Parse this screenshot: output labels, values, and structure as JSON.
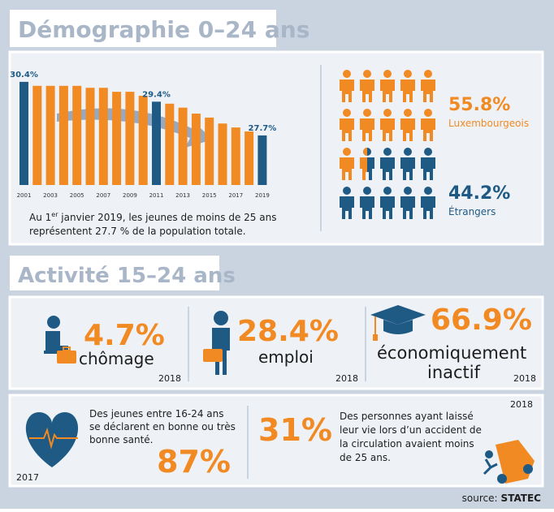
{
  "demographie": {
    "title": "Démographie 0–24 ans",
    "note_before": "Au 1",
    "note_sup": "er",
    "note_after": " janvier 2019, les jeunes de moins de 25 ans",
    "note_line2": "représentent 27.7 % de la population totale.",
    "lux_value": "55.8%",
    "lux_label": "Luxembourgeois",
    "etr_value": "44.2%",
    "etr_label": "Étrangers"
  },
  "chart_data": {
    "type": "bar",
    "categories": [
      "2001",
      null,
      "2003",
      null,
      "2005",
      null,
      "2007",
      null,
      "2009",
      null,
      "2011",
      null,
      "2013",
      null,
      "2015",
      null,
      "2017",
      null,
      "2019"
    ],
    "values": [
      30.4,
      30.2,
      30.2,
      30.2,
      30.2,
      30.1,
      30.1,
      29.9,
      29.9,
      29.7,
      29.4,
      29.3,
      29.1,
      28.8,
      28.6,
      28.3,
      28.1,
      27.9,
      27.7
    ],
    "value_labels": [
      "30.4%",
      null,
      null,
      null,
      null,
      null,
      null,
      null,
      null,
      null,
      "29.4%",
      null,
      null,
      null,
      null,
      null,
      null,
      null,
      "27.7%"
    ],
    "colors": [
      "#1f5a85",
      "#f28a24",
      "#f28a24",
      "#f28a24",
      "#f28a24",
      "#f28a24",
      "#f28a24",
      "#f28a24",
      "#f28a24",
      "#f28a24",
      "#1f5a85",
      "#f28a24",
      "#f28a24",
      "#f28a24",
      "#f28a24",
      "#f28a24",
      "#f28a24",
      "#f28a24",
      "#1f5a85"
    ],
    "ylim": [
      25.2,
      30.6
    ]
  },
  "activite": {
    "title": "Activité 15–24 ans",
    "cards": [
      {
        "value": "4.7%",
        "label": "chômage",
        "year": "2018"
      },
      {
        "value": "28.4%",
        "label": "emploi",
        "year": "2018"
      },
      {
        "value": "66.9%",
        "label": "économiquement",
        "label2": "inactif",
        "year": "2018"
      }
    ]
  },
  "sante": {
    "lines": [
      "Des jeunes entre 16-24 ans",
      "se déclarent en bonne ou très",
      "bonne santé."
    ],
    "value": "87%",
    "year": "2017"
  },
  "route": {
    "value": "31%",
    "lines": [
      "Des personnes ayant laissé",
      "leur vie lors d’un accident de",
      "la circulation avaient moins",
      "de 25 ans."
    ],
    "year": "2018"
  },
  "source": {
    "label": "source:",
    "name": "STATEC"
  }
}
